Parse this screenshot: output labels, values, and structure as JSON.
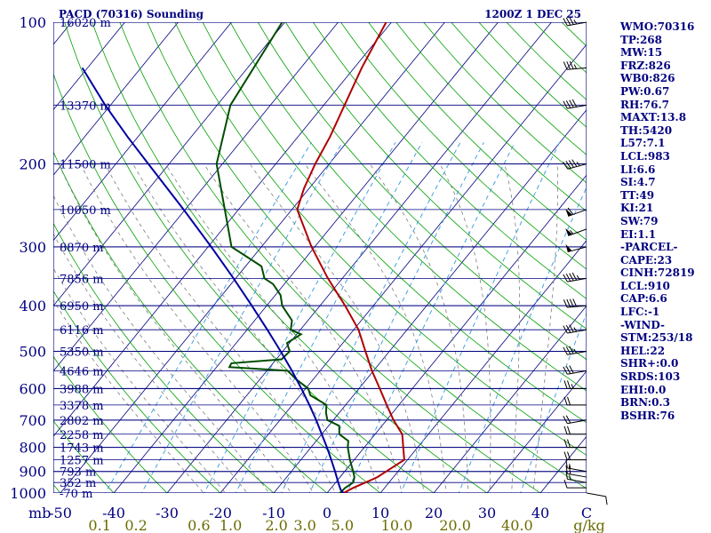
{
  "header": {
    "station": "PACD (70316) Sounding",
    "time": "1200Z  1 DEC 25"
  },
  "indices": [
    "WMO:70316",
    "TP:268",
    "MW:15",
    "FRZ:826",
    "WB0:826",
    "PW:0.67",
    "RH:76.7",
    "MAXT:13.8",
    "TH:5420",
    "L57:7.1",
    "LCL:983",
    "LI:6.6",
    "SI:4.7",
    "TT:49",
    "KI:21",
    "SW:79",
    "EI:1.1",
    "-PARCEL-",
    "CAPE:23",
    "CINH:72819",
    "LCL:910",
    "CAP:6.6",
    "LFC:-1",
    "-WIND-",
    "STM:253/18",
    "HEL:22",
    "SHR+:0.0",
    "SRDS:103",
    "EHI:0.0",
    "BRN:0.3",
    "BSHR:76"
  ],
  "chart_data": {
    "type": "line",
    "diagram": "skew-T log-P",
    "pressure_unit": "mb",
    "temperature_unit": "C",
    "mixing_ratio_unit": "g/kg",
    "pressure_levels": [
      100,
      200,
      300,
      400,
      500,
      600,
      700,
      800,
      900,
      1000
    ],
    "pressure_tick_labels": [
      "100",
      "200",
      "300",
      "400",
      "500",
      "600",
      "700",
      "800",
      "900",
      "1000"
    ],
    "pressure_axis_label": "mb",
    "temperature_ticks": [
      -50,
      -40,
      -30,
      -20,
      -10,
      0,
      10,
      20,
      30,
      40
    ],
    "temperature_tick_labels": [
      "-50",
      "-40",
      "-30",
      "-20",
      "-10",
      "0",
      "10",
      "20",
      "30",
      "40"
    ],
    "temperature_axis_label": "C",
    "mixing_ratio_ticks": [
      0.1,
      0.2,
      0.6,
      1.0,
      2.0,
      3.0,
      5.0,
      10.0,
      20.0,
      40.0
    ],
    "mixing_ratio_tick_labels": [
      "0.1",
      "0.2",
      "0.6",
      "1.0",
      "2.0",
      "3.0",
      "5.0",
      "10.0",
      "20.0",
      "40.0"
    ],
    "mixing_ratio_axis_label": "g/kg",
    "height_levels": [
      {
        "p": 100,
        "label": "16020 m"
      },
      {
        "p": 150,
        "label": "13370 m"
      },
      {
        "p": 200,
        "label": "11500 m"
      },
      {
        "p": 250,
        "label": "10050 m"
      },
      {
        "p": 300,
        "label": "8870 m"
      },
      {
        "p": 350,
        "label": "7856 m"
      },
      {
        "p": 400,
        "label": "6950 m"
      },
      {
        "p": 450,
        "label": "6116 m"
      },
      {
        "p": 500,
        "label": "5350 m"
      },
      {
        "p": 550,
        "label": "4646 m"
      },
      {
        "p": 600,
        "label": "3988 m"
      },
      {
        "p": 650,
        "label": "3378 m"
      },
      {
        "p": 700,
        "label": "2802 m"
      },
      {
        "p": 750,
        "label": "2258 m"
      },
      {
        "p": 800,
        "label": "1743 m"
      },
      {
        "p": 850,
        "label": "1257 m"
      },
      {
        "p": 900,
        "label": "793 m"
      },
      {
        "p": 950,
        "label": "352 m"
      },
      {
        "p": 1000,
        "label": "-70 m"
      }
    ],
    "series": [
      {
        "name": "temperature",
        "color": "#b00000",
        "points": [
          [
            1000,
            3.1
          ],
          [
            975,
            4.1
          ],
          [
            950,
            5.6
          ],
          [
            925,
            7.0
          ],
          [
            900,
            7.8
          ],
          [
            850,
            9.4
          ],
          [
            800,
            7.3
          ],
          [
            750,
            5.1
          ],
          [
            700,
            1.3
          ],
          [
            650,
            -2.3
          ],
          [
            600,
            -6.1
          ],
          [
            550,
            -10.3
          ],
          [
            500,
            -14.5
          ],
          [
            450,
            -19.1
          ],
          [
            400,
            -25.3
          ],
          [
            350,
            -32.7
          ],
          [
            300,
            -40.6
          ],
          [
            250,
            -49.0
          ],
          [
            225,
            -51.0
          ],
          [
            200,
            -52.6
          ],
          [
            175,
            -54.0
          ],
          [
            150,
            -56.1
          ],
          [
            125,
            -58.6
          ],
          [
            100,
            -61.0
          ]
        ]
      },
      {
        "name": "dewpoint",
        "color": "#004d00",
        "points": [
          [
            1000,
            2.4
          ],
          [
            975,
            2.6
          ],
          [
            950,
            3.3
          ],
          [
            925,
            2.7
          ],
          [
            900,
            1.6
          ],
          [
            850,
            -0.8
          ],
          [
            800,
            -3.1
          ],
          [
            775,
            -4.0
          ],
          [
            750,
            -6.7
          ],
          [
            720,
            -8.0
          ],
          [
            700,
            -11.1
          ],
          [
            675,
            -12.5
          ],
          [
            650,
            -13.6
          ],
          [
            620,
            -18.1
          ],
          [
            600,
            -19.5
          ],
          [
            575,
            -23.0
          ],
          [
            550,
            -26.1
          ],
          [
            540,
            -37.6
          ],
          [
            530,
            -37.8
          ],
          [
            520,
            -29.0
          ],
          [
            500,
            -28.7
          ],
          [
            480,
            -30.5
          ],
          [
            460,
            -29.2
          ],
          [
            450,
            -31.8
          ],
          [
            430,
            -33.0
          ],
          [
            400,
            -37.1
          ],
          [
            380,
            -39.0
          ],
          [
            360,
            -42.1
          ],
          [
            350,
            -44.6
          ],
          [
            330,
            -47.0
          ],
          [
            300,
            -55.6
          ],
          [
            200,
            -71.1
          ],
          [
            150,
            -77.5
          ],
          [
            100,
            -80.5
          ]
        ]
      },
      {
        "name": "parcel",
        "color": "#0000a0",
        "points": [
          [
            1000,
            3.1
          ],
          [
            983,
            2.0
          ],
          [
            950,
            0.5
          ],
          [
            900,
            -1.8
          ],
          [
            850,
            -4.3
          ],
          [
            800,
            -7.0
          ],
          [
            750,
            -10.0
          ],
          [
            700,
            -13.2
          ],
          [
            650,
            -16.8
          ],
          [
            600,
            -20.8
          ],
          [
            550,
            -25.3
          ],
          [
            500,
            -30.4
          ],
          [
            450,
            -36.2
          ],
          [
            400,
            -42.8
          ],
          [
            350,
            -50.4
          ],
          [
            300,
            -59.4
          ],
          [
            250,
            -70.3
          ],
          [
            200,
            -83.9
          ],
          [
            175,
            -92.0
          ],
          [
            150,
            -101.0
          ],
          [
            125,
            -111.0
          ]
        ]
      }
    ],
    "winds": [
      {
        "p": 1000,
        "dir": 100,
        "spd": 10
      },
      {
        "p": 975,
        "dir": 270,
        "spd": 10
      },
      {
        "p": 950,
        "dir": 280,
        "spd": 15
      },
      {
        "p": 925,
        "dir": 280,
        "spd": 20
      },
      {
        "p": 900,
        "dir": 280,
        "spd": 15
      },
      {
        "p": 850,
        "dir": 270,
        "spd": 20
      },
      {
        "p": 800,
        "dir": 270,
        "spd": 20
      },
      {
        "p": 750,
        "dir": 270,
        "spd": 20
      },
      {
        "p": 700,
        "dir": 260,
        "spd": 20
      },
      {
        "p": 650,
        "dir": 270,
        "spd": 20
      },
      {
        "p": 600,
        "dir": 270,
        "spd": 25
      },
      {
        "p": 550,
        "dir": 260,
        "spd": 30
      },
      {
        "p": 500,
        "dir": 260,
        "spd": 35
      },
      {
        "p": 450,
        "dir": 260,
        "spd": 35
      },
      {
        "p": 400,
        "dir": 265,
        "spd": 40
      },
      {
        "p": 350,
        "dir": 260,
        "spd": 45
      },
      {
        "p": 300,
        "dir": 255,
        "spd": 50
      },
      {
        "p": 275,
        "dir": 250,
        "spd": 55
      },
      {
        "p": 250,
        "dir": 250,
        "spd": 60
      },
      {
        "p": 200,
        "dir": 255,
        "spd": 45
      },
      {
        "p": 150,
        "dir": 260,
        "spd": 40
      },
      {
        "p": 125,
        "dir": 265,
        "spd": 35
      },
      {
        "p": 100,
        "dir": 260,
        "spd": 35
      }
    ],
    "colors": {
      "isobar": "#000080",
      "isotherm": "#000080",
      "dry_adiabat": "#00a000",
      "moist_adiabat": "#7d7d7d",
      "mixing_ratio": "#3399dd",
      "wind": "#000000"
    }
  }
}
